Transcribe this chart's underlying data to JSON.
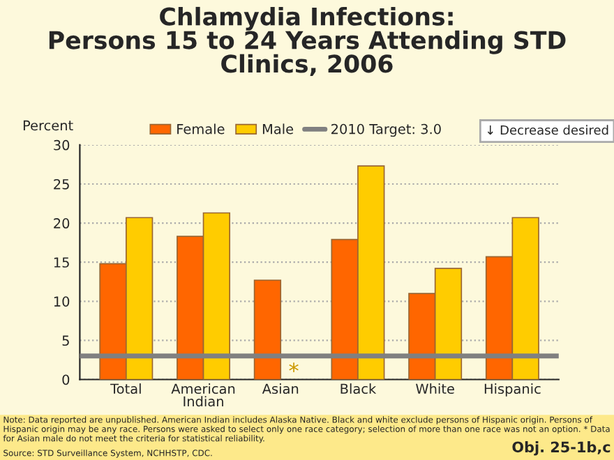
{
  "chart_data": {
    "type": "bar",
    "title": "Chlamydia Infections:\nPersons 15 to 24 Years Attending STD\nClinics, 2006",
    "ylabel": "Percent",
    "categories": [
      "Total",
      "American\nIndian",
      "Asian",
      "Black",
      "White",
      "Hispanic"
    ],
    "series": [
      {
        "name": "Female",
        "color": "#ff6600",
        "values": [
          14.8,
          18.3,
          12.7,
          17.9,
          11.0,
          15.7
        ]
      },
      {
        "name": "Male",
        "color": "#ffcc00",
        "values": [
          20.7,
          21.3,
          null,
          27.3,
          14.2,
          20.7
        ]
      }
    ],
    "ylim": [
      0,
      30
    ],
    "yticks": [
      0,
      5,
      10,
      15,
      20,
      25,
      30
    ],
    "grid": "y",
    "legend": "top",
    "ref_lines": [
      {
        "axis": "y",
        "value": 3.0,
        "label": "2010 Target: 3.0",
        "color": "#808080"
      }
    ],
    "annotations": [
      {
        "text": "*",
        "x": "Asian",
        "y": 0.9
      },
      "↓ Decrease desired",
      "Note: Data reported are unpublished. American Indian includes Alaska Native. Black and white exclude persons of Hispanic origin. Persons of Hispanic origin may be any race. Persons were asked to select only one race category; selection of more than one race was not an option. * Data for Asian male do not meet the criteria for statistical reliability.",
      "Source: STD Surveillance System, NCHHSTP, CDC.",
      "Obj. 25-1b,c"
    ]
  }
}
